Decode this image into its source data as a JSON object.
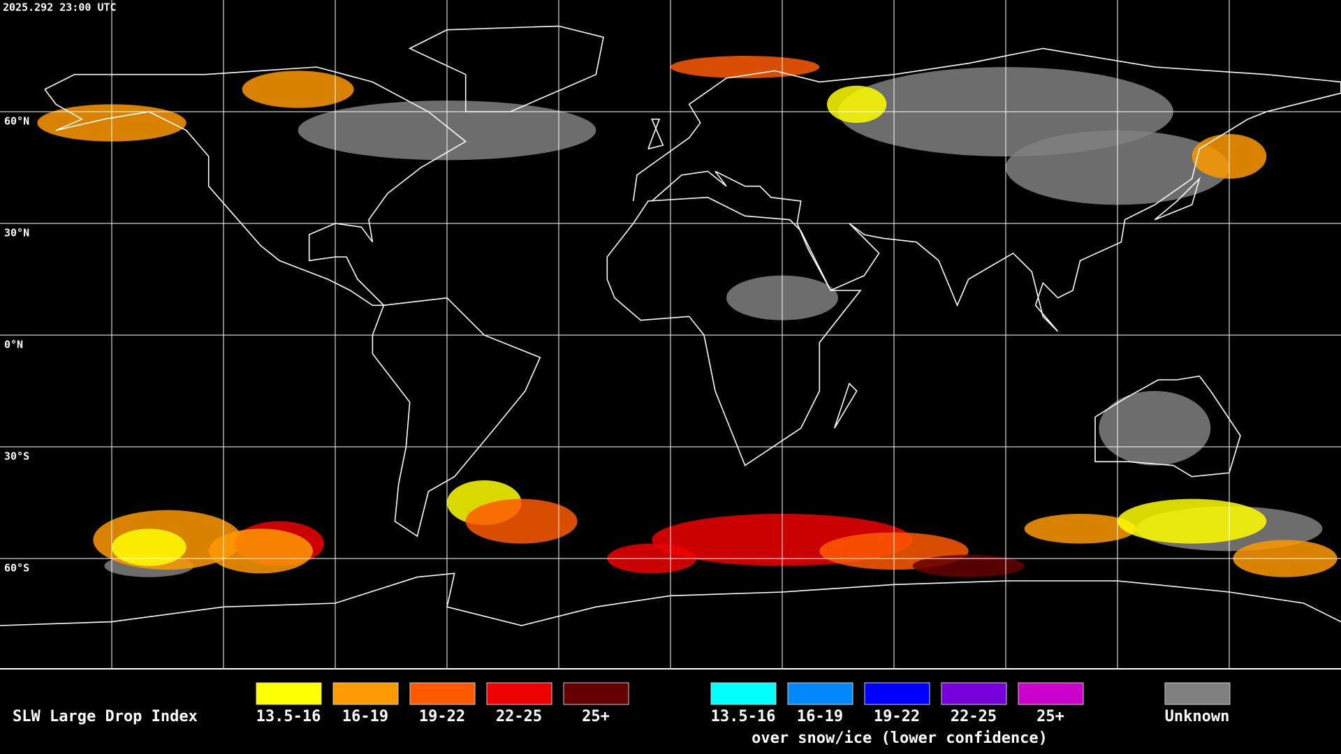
{
  "timestamp": "2025.292 23:00 UTC",
  "latitude_labels": [
    "60°N",
    "30°N",
    "0°N",
    "30°S",
    "60°S"
  ],
  "legend": {
    "title": "SLW Large Drop Index",
    "groups": [
      {
        "items": [
          {
            "label": "13.5-16",
            "color": "#ffff00"
          },
          {
            "label": "16-19",
            "color": "#ff9900"
          },
          {
            "label": "19-22",
            "color": "#ff5a00"
          },
          {
            "label": "22-25",
            "color": "#ee0000"
          },
          {
            "label": "25+",
            "color": "#660000"
          }
        ]
      },
      {
        "items": [
          {
            "label": "13.5-16",
            "color": "#00ffff"
          },
          {
            "label": "16-19",
            "color": "#0088ff"
          },
          {
            "label": "19-22",
            "color": "#0000ff"
          },
          {
            "label": "22-25",
            "color": "#7700dd"
          },
          {
            "label": "25+",
            "color": "#cc00cc"
          }
        ],
        "caption": "over snow/ice (lower confidence)"
      },
      {
        "items": [
          {
            "label": "Unknown",
            "color": "#808080"
          }
        ]
      }
    ]
  }
}
